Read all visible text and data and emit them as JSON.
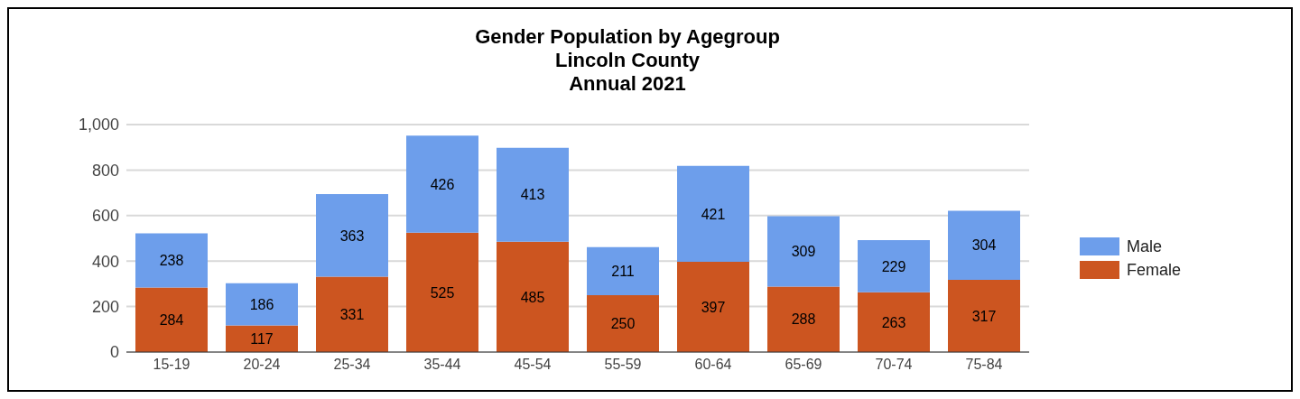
{
  "chart_data": {
    "type": "bar",
    "title": "Gender Population by Agegroup",
    "subtitle": "Lincoln County\nAnnual 2021",
    "categories": [
      "15-19",
      "20-24",
      "25-34",
      "35-44",
      "45-54",
      "55-59",
      "60-64",
      "65-69",
      "70-74",
      "75-84"
    ],
    "series": [
      {
        "name": "Female",
        "color": "#cc5520",
        "values": [
          284,
          117,
          331,
          525,
          485,
          250,
          397,
          288,
          263,
          317
        ]
      },
      {
        "name": "Male",
        "color": "#6d9eeb",
        "values": [
          238,
          186,
          363,
          426,
          413,
          211,
          421,
          309,
          229,
          304
        ]
      }
    ],
    "stacked": true,
    "data_labels": true,
    "ylim": [
      0,
      1000
    ],
    "yticks": [
      0,
      200,
      400,
      600,
      800,
      {
        "value": 1000,
        "label": "1,000"
      }
    ],
    "grid": "y",
    "legend": "right"
  }
}
